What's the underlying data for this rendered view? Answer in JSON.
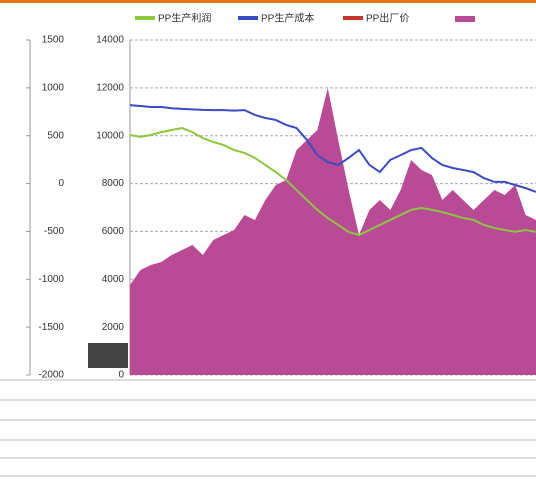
{
  "chart_data": {
    "type": "line",
    "legend_position": "top",
    "categories": [
      null,
      null,
      null,
      null,
      null,
      null,
      null,
      null,
      null,
      null,
      null,
      null,
      null,
      null,
      null,
      null,
      null,
      null,
      null,
      null,
      null,
      null,
      null,
      null,
      null,
      null,
      null,
      null,
      null,
      null,
      null,
      null,
      null,
      null,
      null,
      null,
      null,
      null,
      null,
      null
    ],
    "series": [
      {
        "name": "PP生产利润",
        "color": "#8dc63f",
        "values": [
          10030,
          9950,
          10030,
          10150,
          10240,
          10320,
          10150,
          9900,
          9740,
          9610,
          9400,
          9280,
          9070,
          8780,
          8480,
          8150,
          7730,
          7310,
          6900,
          6560,
          6270,
          5980,
          5850,
          6060,
          6270,
          6480,
          6690,
          6900,
          6980,
          6900,
          6810,
          6690,
          6560,
          6480,
          6270,
          6140,
          6060,
          5980,
          6060,
          5980
        ]
      },
      {
        "name": "PP生产成本",
        "color": "#3b4bc4",
        "values": [
          11280,
          11240,
          11200,
          11200,
          11150,
          11120,
          11100,
          11080,
          11070,
          11070,
          11050,
          11070,
          10870,
          10740,
          10660,
          10450,
          10320,
          9820,
          9190,
          8900,
          8780,
          9070,
          9400,
          8780,
          8480,
          8990,
          9190,
          9400,
          9490,
          9070,
          8780,
          8650,
          8570,
          8480,
          8230,
          8070,
          8070,
          7940,
          7810,
          7650
        ]
      },
      {
        "name": "PP出厂价",
        "color": "#c0392b"
      },
      {
        "color": "#b84a96",
        "axis": "y2",
        "fill": true,
        "values": [
          -1060,
          -903,
          -851,
          -819,
          -746,
          -694,
          -642,
          -746,
          -590,
          -537,
          -485,
          -328,
          -381,
          -172,
          -15,
          37,
          351,
          455,
          560,
          999,
          455,
          -67,
          -537,
          -276,
          -172,
          -276,
          -67,
          246,
          142,
          90,
          -172,
          -67,
          -172,
          -276,
          -172,
          -67,
          -119,
          -15,
          -328,
          -381
        ]
      }
    ],
    "ylim": [
      0,
      14000
    ],
    "yticks": [
      0,
      2000,
      4000,
      6000,
      8000,
      10000,
      12000,
      14000
    ],
    "y2lim": [
      -2000,
      1500
    ],
    "y2ticks": [
      -2000,
      -1500,
      -1000,
      -500,
      0,
      500,
      1000,
      1500
    ],
    "grid": true
  }
}
